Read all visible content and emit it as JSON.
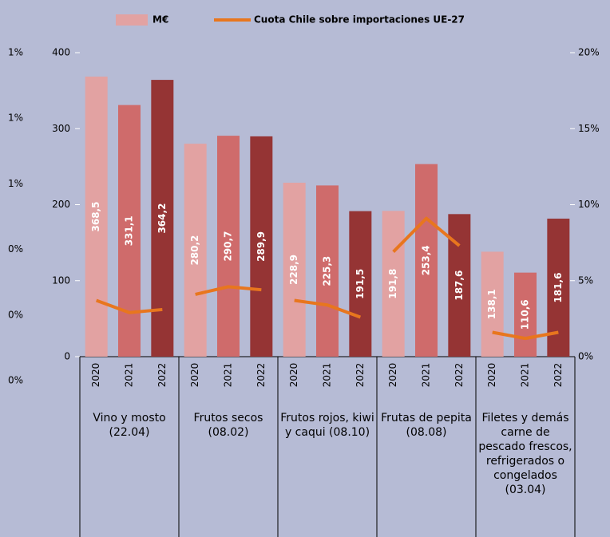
{
  "chart_data": {
    "type": "bar",
    "series": [
      {
        "name": "M€",
        "colors": [
          "#e2a2a2",
          "#cf6b6b",
          "#953434"
        ]
      },
      {
        "name": "Cuota Chile sobre importaciones UE-27",
        "color": "#e8761e",
        "axis": "y2"
      }
    ],
    "groups": [
      {
        "name": "Vino y mosto (22.04)",
        "categories": [
          "2020",
          "2021",
          "2022"
        ],
        "values": [
          368.5,
          331.1,
          364.2
        ],
        "value_labels": [
          "368,5",
          "331,1",
          "364,2"
        ],
        "share": [
          3.7,
          2.9,
          3.1
        ]
      },
      {
        "name": "Frutos secos (08.02)",
        "categories": [
          "2020",
          "2021",
          "2022"
        ],
        "values": [
          280.2,
          290.7,
          289.9
        ],
        "value_labels": [
          "280,2",
          "290,7",
          "289,9"
        ],
        "share": [
          4.1,
          4.6,
          4.4
        ]
      },
      {
        "name": "Frutos rojos, kiwi  y caqui (08.10)",
        "categories": [
          "2020",
          "2021",
          "2022"
        ],
        "values": [
          228.9,
          225.3,
          191.5
        ],
        "value_labels": [
          "228,9",
          "225,3",
          "191,5"
        ],
        "share": [
          3.7,
          3.4,
          2.6
        ]
      },
      {
        "name": "Frutas de pepita (08.08)",
        "categories": [
          "2020",
          "2021",
          "2022"
        ],
        "values": [
          191.8,
          253.4,
          187.6
        ],
        "value_labels": [
          "191,8",
          "253,4",
          "187,6"
        ],
        "share": [
          6.9,
          9.1,
          7.3
        ]
      },
      {
        "name": "Filetes y demás carne de pescado frescos, refrigerados o congelados (03.04)",
        "categories": [
          "2020",
          "2021",
          "2022"
        ],
        "values": [
          138.1,
          110.6,
          181.6
        ],
        "value_labels": [
          "138,1",
          "110,6",
          "181,6"
        ],
        "share": [
          1.6,
          1.2,
          1.6
        ]
      }
    ],
    "ylim": [
      0,
      400
    ],
    "yticks": [
      0,
      100,
      200,
      300,
      400
    ],
    "y2lim": [
      0,
      20
    ],
    "y2ticks": [
      {
        "value": 0,
        "label": "0%"
      },
      {
        "value": 5,
        "label": "5%"
      },
      {
        "value": 10,
        "label": "10%"
      },
      {
        "value": 15,
        "label": "15%"
      },
      {
        "value": 20,
        "label": "20%"
      }
    ],
    "y3lim": [
      0,
      1
    ],
    "y3ticks": [
      {
        "value": 0,
        "label": "0%"
      },
      {
        "value": 0.2,
        "label": "0%"
      },
      {
        "value": 0.4,
        "label": "0%"
      },
      {
        "value": 0.6,
        "label": "1%"
      },
      {
        "value": 0.8,
        "label": "1%"
      },
      {
        "value": 1,
        "label": "1%"
      }
    ]
  }
}
